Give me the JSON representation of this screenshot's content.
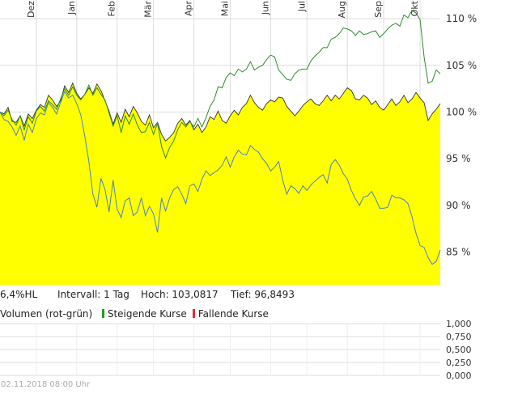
{
  "chart_data": {
    "type": "area",
    "months": [
      "Dez",
      "Jan",
      "Feb",
      "Mär",
      "Apr",
      "Mai",
      "Jun",
      "Jul",
      "Aug",
      "Sep",
      "Okt"
    ],
    "yticks": [
      "110 %",
      "105 %",
      "100 %",
      "95 %",
      "90 %",
      "85 %"
    ],
    "ytick_values": [
      110,
      105,
      100,
      95,
      90,
      85
    ],
    "ylim": [
      81.5,
      112
    ],
    "x_count": 110,
    "month_starts": [
      9,
      19,
      29,
      38,
      48,
      57,
      67,
      76,
      86,
      95,
      104
    ],
    "series": [
      {
        "role": "area",
        "values": [
          100.0,
          99.8,
          100.5,
          99.0,
          98.9,
          99.6,
          98.5,
          99.8,
          99.3,
          100.2,
          100.8,
          100.5,
          101.8,
          101.3,
          100.6,
          101.2,
          102.8,
          102.1,
          103.1,
          102.0,
          101.4,
          101.9,
          102.6,
          102.0,
          103.0,
          102.3,
          101.2,
          100.1,
          98.7,
          99.9,
          98.9,
          100.3,
          99.5,
          100.6,
          99.9,
          99.0,
          98.6,
          99.7,
          98.3,
          98.9,
          97.6,
          96.9,
          97.3,
          97.8,
          98.8,
          99.3,
          98.6,
          99.1,
          98.1,
          98.7,
          97.8,
          98.4,
          99.5,
          99.2,
          100.1,
          99.1,
          98.8,
          99.6,
          100.2,
          99.7,
          100.5,
          100.9,
          101.8,
          101.0,
          100.5,
          100.2,
          100.9,
          101.3,
          101.1,
          101.6,
          101.5,
          100.6,
          100.1,
          99.6,
          100.1,
          100.7,
          101.1,
          101.4,
          100.9,
          100.7,
          101.2,
          101.8,
          101.2,
          101.8,
          101.4,
          102.0,
          102.6,
          102.3,
          101.4,
          101.3,
          101.8,
          101.5,
          100.8,
          101.2,
          100.5,
          100.2,
          100.8,
          101.4,
          100.7,
          101.1,
          101.8,
          101.0,
          101.4,
          102.1,
          101.5,
          101.0,
          99.1,
          99.8,
          100.3,
          100.9
        ]
      },
      {
        "role": "rising-line",
        "color": "#2e8b2e",
        "values": [
          100.0,
          99.6,
          100.2,
          99.2,
          98.6,
          99.6,
          98.1,
          99.5,
          98.8,
          100.1,
          100.6,
          100.1,
          101.2,
          100.8,
          100.3,
          101.4,
          102.5,
          101.8,
          102.7,
          101.8,
          101.3,
          101.9,
          102.9,
          101.8,
          102.6,
          101.9,
          101.3,
          99.9,
          98.5,
          99.6,
          97.8,
          99.6,
          98.7,
          99.8,
          98.6,
          97.8,
          97.9,
          98.9,
          97.6,
          98.8,
          96.3,
          95.1,
          96.2,
          96.9,
          98.1,
          98.9,
          98.4,
          99.0,
          98.4,
          99.3,
          98.4,
          99.4,
          100.6,
          101.3,
          102.7,
          102.6,
          103.7,
          104.2,
          103.9,
          104.6,
          104.3,
          104.6,
          105.4,
          104.5,
          104.8,
          105.0,
          105.6,
          106.1,
          105.9,
          104.5,
          104.0,
          103.5,
          103.4,
          104.1,
          104.5,
          104.6,
          104.6,
          105.5,
          106.0,
          106.4,
          106.9,
          106.9,
          107.8,
          108.0,
          108.4,
          109.0,
          108.9,
          108.7,
          108.2,
          108.7,
          108.3,
          108.4,
          108.6,
          108.7,
          108.0,
          108.4,
          108.9,
          109.3,
          109.5,
          109.2,
          110.4,
          110.1,
          110.9,
          110.6,
          109.9,
          105.9,
          103.1,
          103.3,
          104.5,
          104.1
        ]
      },
      {
        "role": "blue-line",
        "color": "#4b82b8",
        "values": [
          100.0,
          99.2,
          99.0,
          98.4,
          97.5,
          98.5,
          97.0,
          98.7,
          97.8,
          99.3,
          99.9,
          99.7,
          101.0,
          100.5,
          99.8,
          101.0,
          102.2,
          101.5,
          101.8,
          100.9,
          99.7,
          97.4,
          94.7,
          91.2,
          89.8,
          92.9,
          91.7,
          89.3,
          92.7,
          89.6,
          88.7,
          90.5,
          90.8,
          88.9,
          89.3,
          90.8,
          88.9,
          89.9,
          89.1,
          87.1,
          90.8,
          89.4,
          90.8,
          91.7,
          92.0,
          91.2,
          90.2,
          92.1,
          92.3,
          91.5,
          92.8,
          93.7,
          93.2,
          93.5,
          93.8,
          94.3,
          95.2,
          94.1,
          95.2,
          95.9,
          95.5,
          95.4,
          96.4,
          96.0,
          95.7,
          95.0,
          94.5,
          93.7,
          94.1,
          94.7,
          92.7,
          91.2,
          92.1,
          91.8,
          91.3,
          92.1,
          91.6,
          92.2,
          92.6,
          93.0,
          93.3,
          92.4,
          94.4,
          94.9,
          94.3,
          93.4,
          92.8,
          91.6,
          90.7,
          90.0,
          90.9,
          91.0,
          91.5,
          90.7,
          89.7,
          89.7,
          89.8,
          91.1,
          90.8,
          90.8,
          90.6,
          90.2,
          88.8,
          87.0,
          85.7,
          85.5,
          84.4,
          83.7,
          84.0,
          85.2
        ]
      }
    ],
    "volume_yticks": [
      "1,000",
      "0,750",
      "0,500",
      "0,250",
      "0,000"
    ],
    "volume_ytick_values": [
      1.0,
      0.75,
      0.5,
      0.25,
      0.0
    ]
  },
  "info": {
    "range": "6,4%HL",
    "interval": "Intervall: 1 Tag",
    "high": "Hoch: 103,0817",
    "low": "Tief: 96,8493"
  },
  "volume": {
    "label": "Volumen (rot-grün)",
    "rising": "Steigende Kurse",
    "falling": "Fallende Kurse",
    "rising_color": "#1aa31a",
    "falling_color": "#e03030"
  },
  "timestamp": "02.11.2018 08:00 Uhr",
  "colors": {
    "area_fill": "#ffff00",
    "area_stroke": "#333333"
  }
}
